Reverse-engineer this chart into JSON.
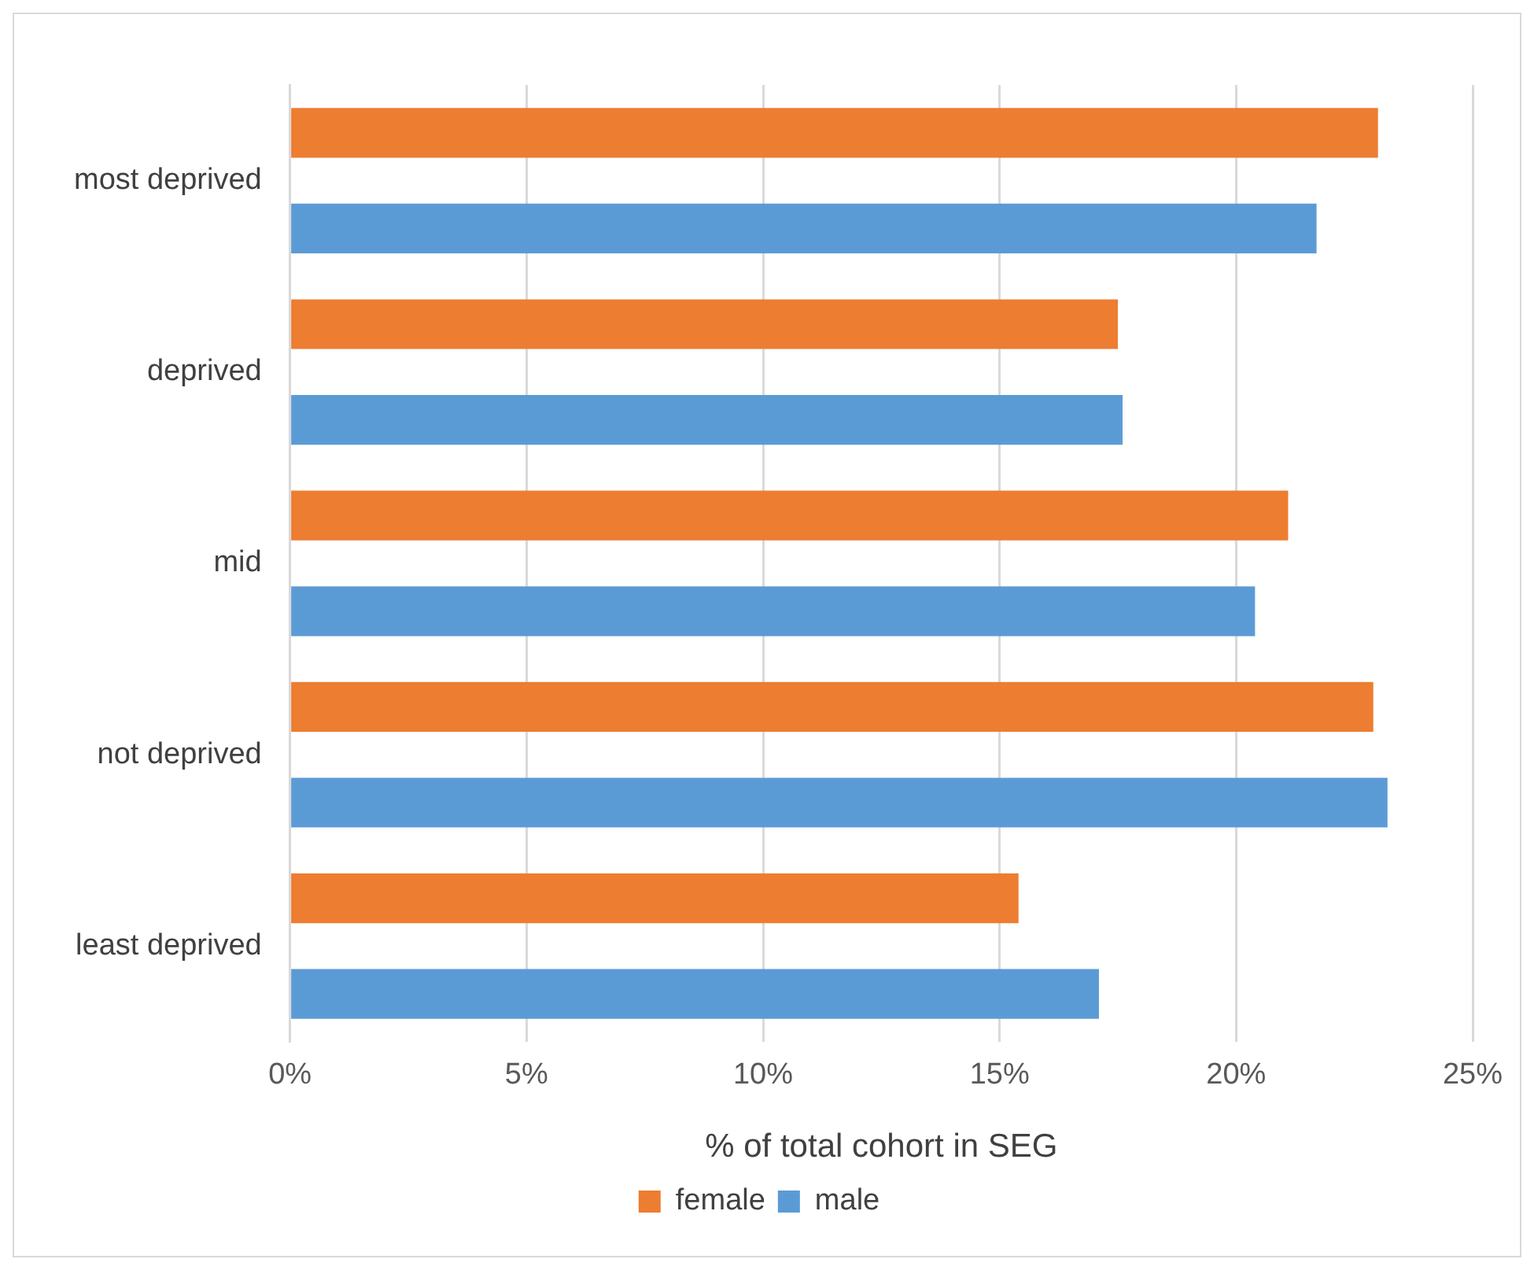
{
  "chart_data": {
    "type": "bar",
    "orientation": "horizontal",
    "xlabel": "% of total cohort in SEG",
    "categories": [
      "most deprived",
      "deprived",
      "mid",
      "not deprived",
      "least deprived"
    ],
    "series": [
      {
        "name": "female",
        "color": "#ed7d31",
        "values": [
          23.0,
          17.5,
          21.1,
          22.9,
          15.4
        ]
      },
      {
        "name": "male",
        "color": "#5b9bd5",
        "values": [
          21.7,
          17.6,
          20.4,
          23.2,
          17.1
        ]
      }
    ],
    "xlim": [
      0,
      25
    ],
    "xticks": [
      {
        "value": 0,
        "label": "0%"
      },
      {
        "value": 5,
        "label": "5%"
      },
      {
        "value": 10,
        "label": "10%"
      },
      {
        "value": 15,
        "label": "15%"
      },
      {
        "value": 20,
        "label": "20%"
      },
      {
        "value": 25,
        "label": "25%"
      }
    ],
    "grid": "x",
    "legend": "bottom"
  }
}
